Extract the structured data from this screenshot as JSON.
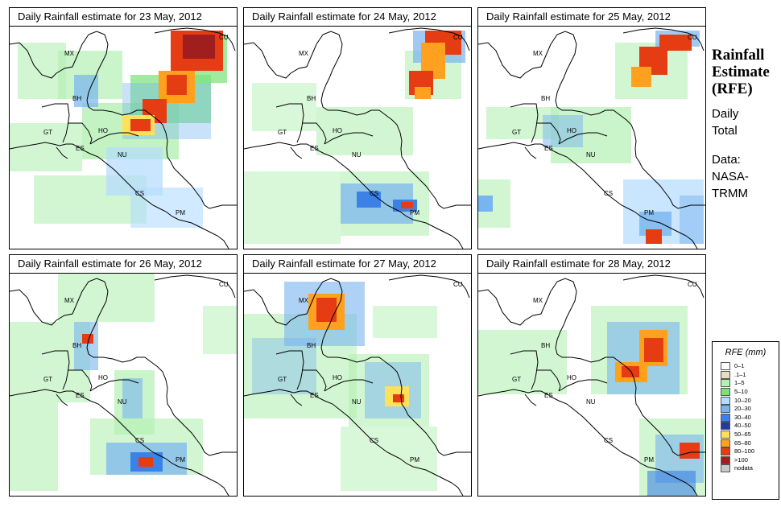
{
  "sidebar": {
    "title_lines": [
      "Rainfall",
      "Estimate",
      "(RFE)"
    ],
    "period_lines": [
      "Daily",
      "Total"
    ],
    "source_lines": [
      "Data:",
      "NASA-",
      "TRMM"
    ]
  },
  "legend": {
    "title": "RFE (mm)",
    "entries": [
      {
        "label": "0–1",
        "color": "#ffffff"
      },
      {
        "label": ".1–1",
        "color": "#e8dcc4"
      },
      {
        "label": "1–5",
        "color": "#b4f0b4"
      },
      {
        "label": "5–10",
        "color": "#78e278"
      },
      {
        "label": "10–20",
        "color": "#b4dcff"
      },
      {
        "label": "20–30",
        "color": "#78b4f0"
      },
      {
        "label": "30–40",
        "color": "#3c82e6"
      },
      {
        "label": "40–50",
        "color": "#1e3ca0"
      },
      {
        "label": "50–65",
        "color": "#ffe05a"
      },
      {
        "label": "65–80",
        "color": "#ffa01e"
      },
      {
        "label": "80–100",
        "color": "#e63c14"
      },
      {
        "label": ">100",
        "color": "#a01e1e"
      },
      {
        "label": "nodata",
        "color": "#c8c8c8"
      }
    ]
  },
  "map_labels": {
    "mx": "MX",
    "bh": "BH",
    "gt": "GT",
    "ho": "HO",
    "es": "ES",
    "nu": "NU",
    "cs": "CS",
    "pm": "PM",
    "cu": "CU"
  },
  "panels": [
    {
      "title": "Daily Rainfall estimate for  23 May, 2012"
    },
    {
      "title": "Daily Rainfall estimate for  24 May, 2012"
    },
    {
      "title": "Daily Rainfall estimate for  25 May, 2012"
    },
    {
      "title": "Daily Rainfall estimate for  26 May, 2012"
    },
    {
      "title": "Daily Rainfall estimate for  27 May, 2012"
    },
    {
      "title": "Daily Rainfall estimate for  28 May, 2012"
    }
  ]
}
